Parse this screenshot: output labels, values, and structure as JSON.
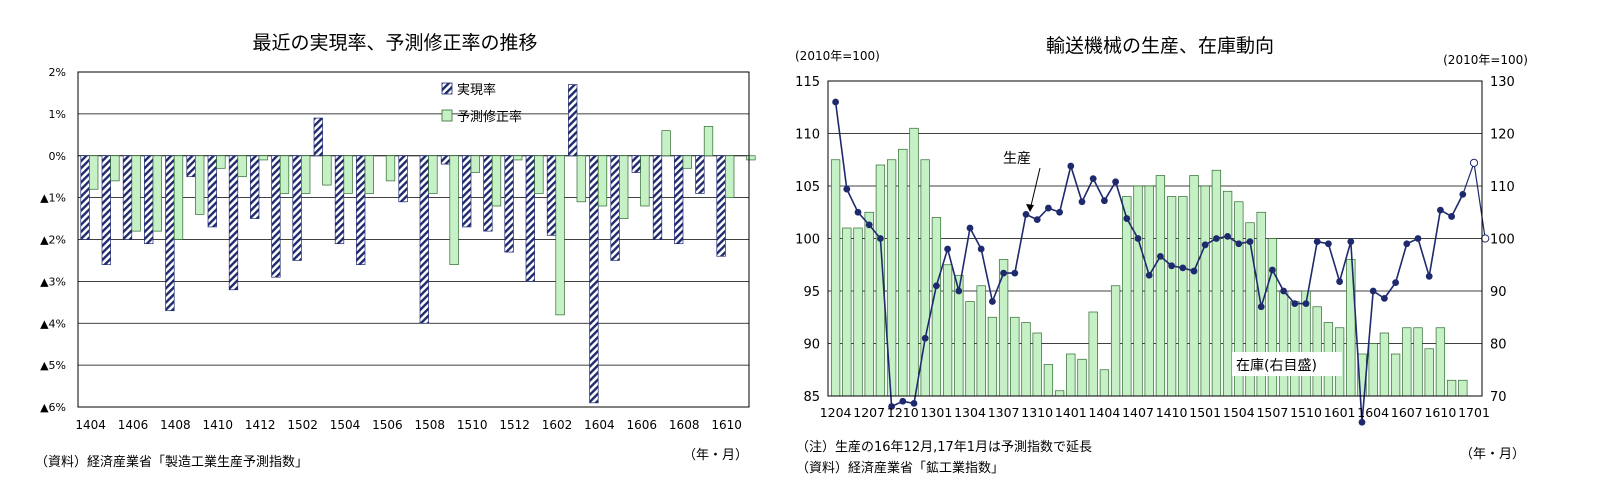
{
  "charts": [
    {
      "type": "bar",
      "title": "最近の実現率、予測修正率の推移",
      "ylim": [
        -6,
        2
      ],
      "y_ticks": [
        2,
        1,
        0,
        -1,
        -2,
        -3,
        -4,
        -5,
        -6
      ],
      "y_tick_labels": [
        "2%",
        "1%",
        "0%",
        "▲1%",
        "▲2%",
        "▲3%",
        "▲4%",
        "▲5%",
        "▲6%"
      ],
      "x_tick_labels": [
        "1404",
        "1406",
        "1408",
        "1410",
        "1412",
        "1502",
        "1504",
        "1506",
        "1508",
        "1510",
        "1512",
        "1602",
        "1604",
        "1606",
        "1608",
        "1610"
      ],
      "x_label": "（年・月）",
      "source": "（資料）経済産業省「製造工業生産予測指数」",
      "grid": true,
      "legend_position": "top-right",
      "series": [
        {
          "name": "実現率",
          "pattern": "hatch",
          "values": [
            -2.0,
            -2.6,
            -2.0,
            -2.1,
            -3.7,
            -0.5,
            -1.7,
            -3.2,
            -1.5,
            -2.9,
            -2.5,
            0.9,
            -2.1,
            -2.6,
            null,
            -1.1,
            -4.0,
            -0.2,
            -1.7,
            -1.8,
            -2.3,
            -3.0,
            -1.9,
            1.7,
            -5.9,
            -2.5,
            -0.4,
            -2.0,
            -2.1,
            -0.9,
            -2.4,
            null
          ]
        },
        {
          "name": "予測修正率",
          "color": "#c6f1c6",
          "values": [
            -0.8,
            -0.6,
            -1.8,
            -1.8,
            -2.0,
            -1.4,
            -0.3,
            -0.5,
            -0.1,
            -0.9,
            -0.9,
            -0.7,
            -0.9,
            -0.9,
            -0.6,
            null,
            -0.9,
            -2.6,
            -0.4,
            -1.2,
            -0.1,
            -0.9,
            -3.8,
            -1.1,
            -1.2,
            -1.5,
            -1.2,
            0.6,
            -0.3,
            0.7,
            -1.0,
            -0.1
          ]
        }
      ]
    },
    {
      "type": "bar+line",
      "title": "輸送機械の生産、在庫動向",
      "left_unit": "(2010年=100)",
      "right_unit": "(2010年=100)",
      "left_ylim": [
        85,
        115
      ],
      "left_ticks": [
        85,
        90,
        95,
        100,
        105,
        110,
        115
      ],
      "right_ylim": [
        70,
        130
      ],
      "right_ticks": [
        70,
        80,
        90,
        100,
        110,
        120,
        130
      ],
      "x_tick_labels": [
        "1204",
        "1207",
        "1210",
        "1301",
        "1304",
        "1307",
        "1310",
        "1401",
        "1404",
        "1407",
        "1410",
        "1501",
        "1504",
        "1507",
        "1510",
        "1601",
        "1604",
        "1607",
        "1610",
        "1701"
      ],
      "x_label": "（年・月）",
      "note": "（注）生産の16年12月,17年1月は予測指数で延長",
      "source": "（資料）経済産業省「鉱工業指数」",
      "annotations": {
        "production": "生産",
        "inventory": "在庫(右目盛)"
      },
      "inventory": {
        "name": "在庫(右目盛)",
        "axis": "right",
        "color": "#c6f1c6",
        "values": [
          115,
          102,
          102,
          105,
          114,
          115,
          117,
          121,
          115,
          104,
          95,
          93,
          88,
          91,
          85,
          96,
          85,
          84,
          82,
          76,
          71,
          78,
          77,
          86,
          75,
          91,
          108,
          110,
          110,
          112,
          108,
          108,
          112,
          110,
          113,
          109,
          107,
          103,
          105,
          100,
          90,
          88,
          90,
          87,
          84,
          83,
          96,
          78,
          80,
          82,
          78,
          83,
          83,
          79,
          83,
          73,
          73,
          70,
          70
        ]
      },
      "production": {
        "name": "生産",
        "axis": "left",
        "color": "#1f2a6e",
        "values": [
          113.0,
          104.7,
          102.5,
          101.3,
          100.0,
          84.0,
          84.5,
          84.3,
          90.5,
          95.5,
          99.0,
          95.0,
          101.0,
          99.0,
          94.0,
          96.7,
          96.7,
          102.3,
          101.8,
          102.9,
          102.5,
          106.9,
          103.5,
          105.7,
          103.6,
          105.4,
          101.9,
          100.0,
          96.5,
          98.3,
          97.4,
          97.2,
          96.9,
          99.4,
          100.0,
          100.2,
          99.5,
          99.7,
          93.5,
          97.0,
          95.0,
          93.8,
          93.8,
          99.7,
          99.5,
          95.9,
          99.7,
          82.5,
          95.0,
          94.3,
          95.8,
          99.5,
          100.0,
          96.4,
          102.7,
          102.1,
          104.2,
          107.2,
          100.0
        ],
        "forecast_from_index": 57
      }
    }
  ]
}
